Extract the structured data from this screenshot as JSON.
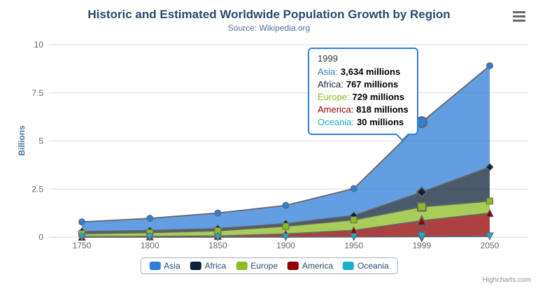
{
  "chart": {
    "title": "Historic and Estimated Worldwide Population Growth by Region",
    "subtitle": "Source: Wikipedia.org",
    "credits": "Highcharts.com"
  },
  "chart_data": {
    "type": "area",
    "stacking": "normal",
    "title": "Historic and Estimated Worldwide Population Growth by Region",
    "subtitle": "Source: Wikipedia.org",
    "categories": [
      "1750",
      "1800",
      "1850",
      "1900",
      "1950",
      "1999",
      "2050"
    ],
    "xlabel": "",
    "ylabel": "Billions",
    "ylim": [
      0,
      10
    ],
    "yticks": [
      0,
      2.5,
      5,
      7.5,
      10
    ],
    "grid": true,
    "legend_position": "bottom",
    "fill_opacity": 0.75,
    "line_color": "#666666",
    "hover_category": "1999",
    "stack_order_bottom_to_top": [
      "Oceania",
      "America",
      "Europe",
      "Africa",
      "Asia"
    ],
    "unit": "millions",
    "series": [
      {
        "name": "Asia",
        "color": "#2f7ed8",
        "marker": "circle",
        "values_millions": [
          502,
          635,
          809,
          947,
          1402,
          3634,
          5268
        ]
      },
      {
        "name": "Africa",
        "color": "#0d233a",
        "marker": "diamond",
        "values_millions": [
          106,
          107,
          111,
          133,
          221,
          767,
          1766
        ]
      },
      {
        "name": "Europe",
        "color": "#8bbc21",
        "marker": "square",
        "values_millions": [
          163,
          203,
          276,
          408,
          547,
          729,
          628
        ]
      },
      {
        "name": "America",
        "color": "#910000",
        "marker": "triangle",
        "values_millions": [
          18,
          31,
          54,
          156,
          339,
          818,
          1201
        ]
      },
      {
        "name": "Oceania",
        "color": "#1aadce",
        "marker": "triangle-down",
        "values_millions": [
          2,
          2,
          2,
          6,
          13,
          30,
          46
        ]
      }
    ]
  },
  "axes": {
    "x_labels": [
      "1750",
      "1800",
      "1850",
      "1900",
      "1950",
      "1999",
      "2050"
    ],
    "y_labels": [
      "0",
      "2.5",
      "5",
      "7.5",
      "10"
    ]
  },
  "tooltip": {
    "header": "1999",
    "rows": [
      {
        "name": "Asia",
        "value": "3,634 millions",
        "color": "#2f7ed8"
      },
      {
        "name": "Africa",
        "value": "767 millions",
        "color": "#0d233a"
      },
      {
        "name": "Europe",
        "value": "729 millions",
        "color": "#8bbc21"
      },
      {
        "name": "America",
        "value": "818 millions",
        "color": "#910000"
      },
      {
        "name": "Oceania",
        "value": "30 millions",
        "color": "#1aadce"
      }
    ]
  },
  "legend": {
    "items": [
      {
        "label": "Asia",
        "color": "#2f7ed8"
      },
      {
        "label": "Africa",
        "color": "#0d233a"
      },
      {
        "label": "Europe",
        "color": "#8bbc21"
      },
      {
        "label": "America",
        "color": "#910000"
      },
      {
        "label": "Oceania",
        "color": "#1aadce"
      }
    ]
  }
}
